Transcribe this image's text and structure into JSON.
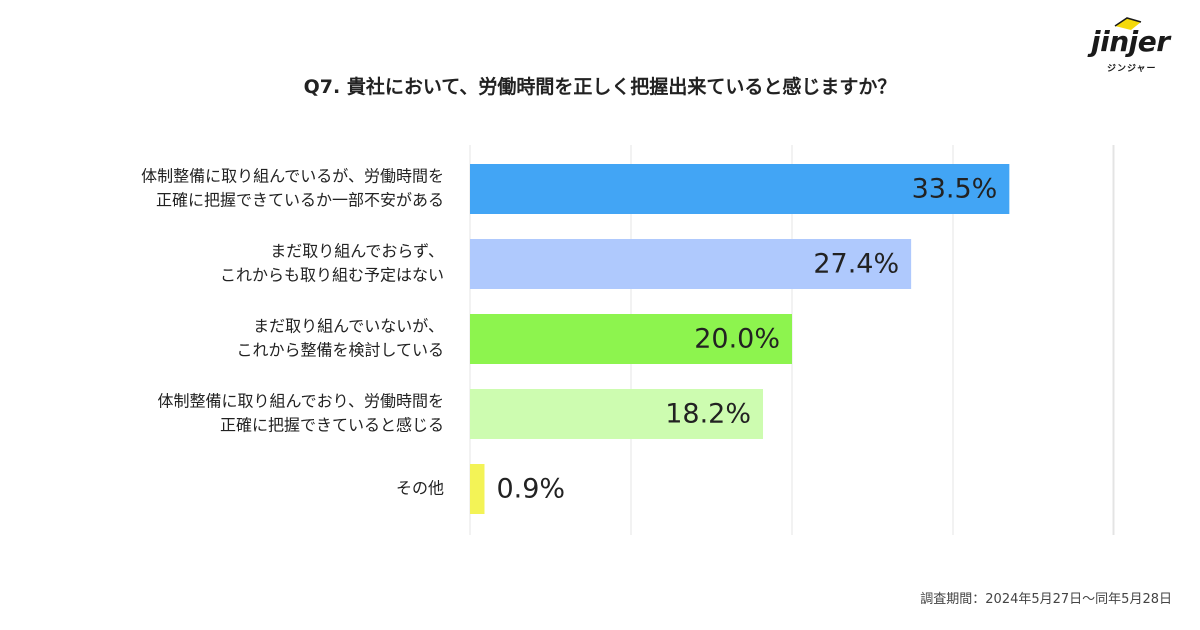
{
  "logo": {
    "wordmark": "jinjer",
    "katakana": "ジンジャー"
  },
  "chart_data": {
    "type": "bar",
    "orientation": "horizontal",
    "title": "Q7. 貴社において、労働時間を正しく把握出来ていると感じますか？",
    "xlim": [
      0,
      40
    ],
    "grid": true,
    "categories": [
      [
        "体制整備に取り組んでいるが、労働時間を",
        "正確に把握できているか一部不安がある"
      ],
      [
        "まだ取り組んでおらず、",
        "これからも取り組む予定はない"
      ],
      [
        "まだ取り組んでいないが、",
        "これから整備を検討している"
      ],
      [
        "体制整備に取り組んでおり、労働時間を",
        "正確に把握できていると感じる"
      ],
      [
        "その他"
      ]
    ],
    "values": [
      33.5,
      27.4,
      20.0,
      18.2,
      0.9
    ],
    "value_labels": [
      "33.5%",
      "27.4%",
      "20.0%",
      "18.2%",
      "0.9%"
    ],
    "colors": [
      "#42a5f5",
      "#afc9fd",
      "#8df44e",
      "#cdfcb0",
      "#f3f356"
    ]
  },
  "footnote": "調査期間：2024年5月27日〜同年5月28日"
}
